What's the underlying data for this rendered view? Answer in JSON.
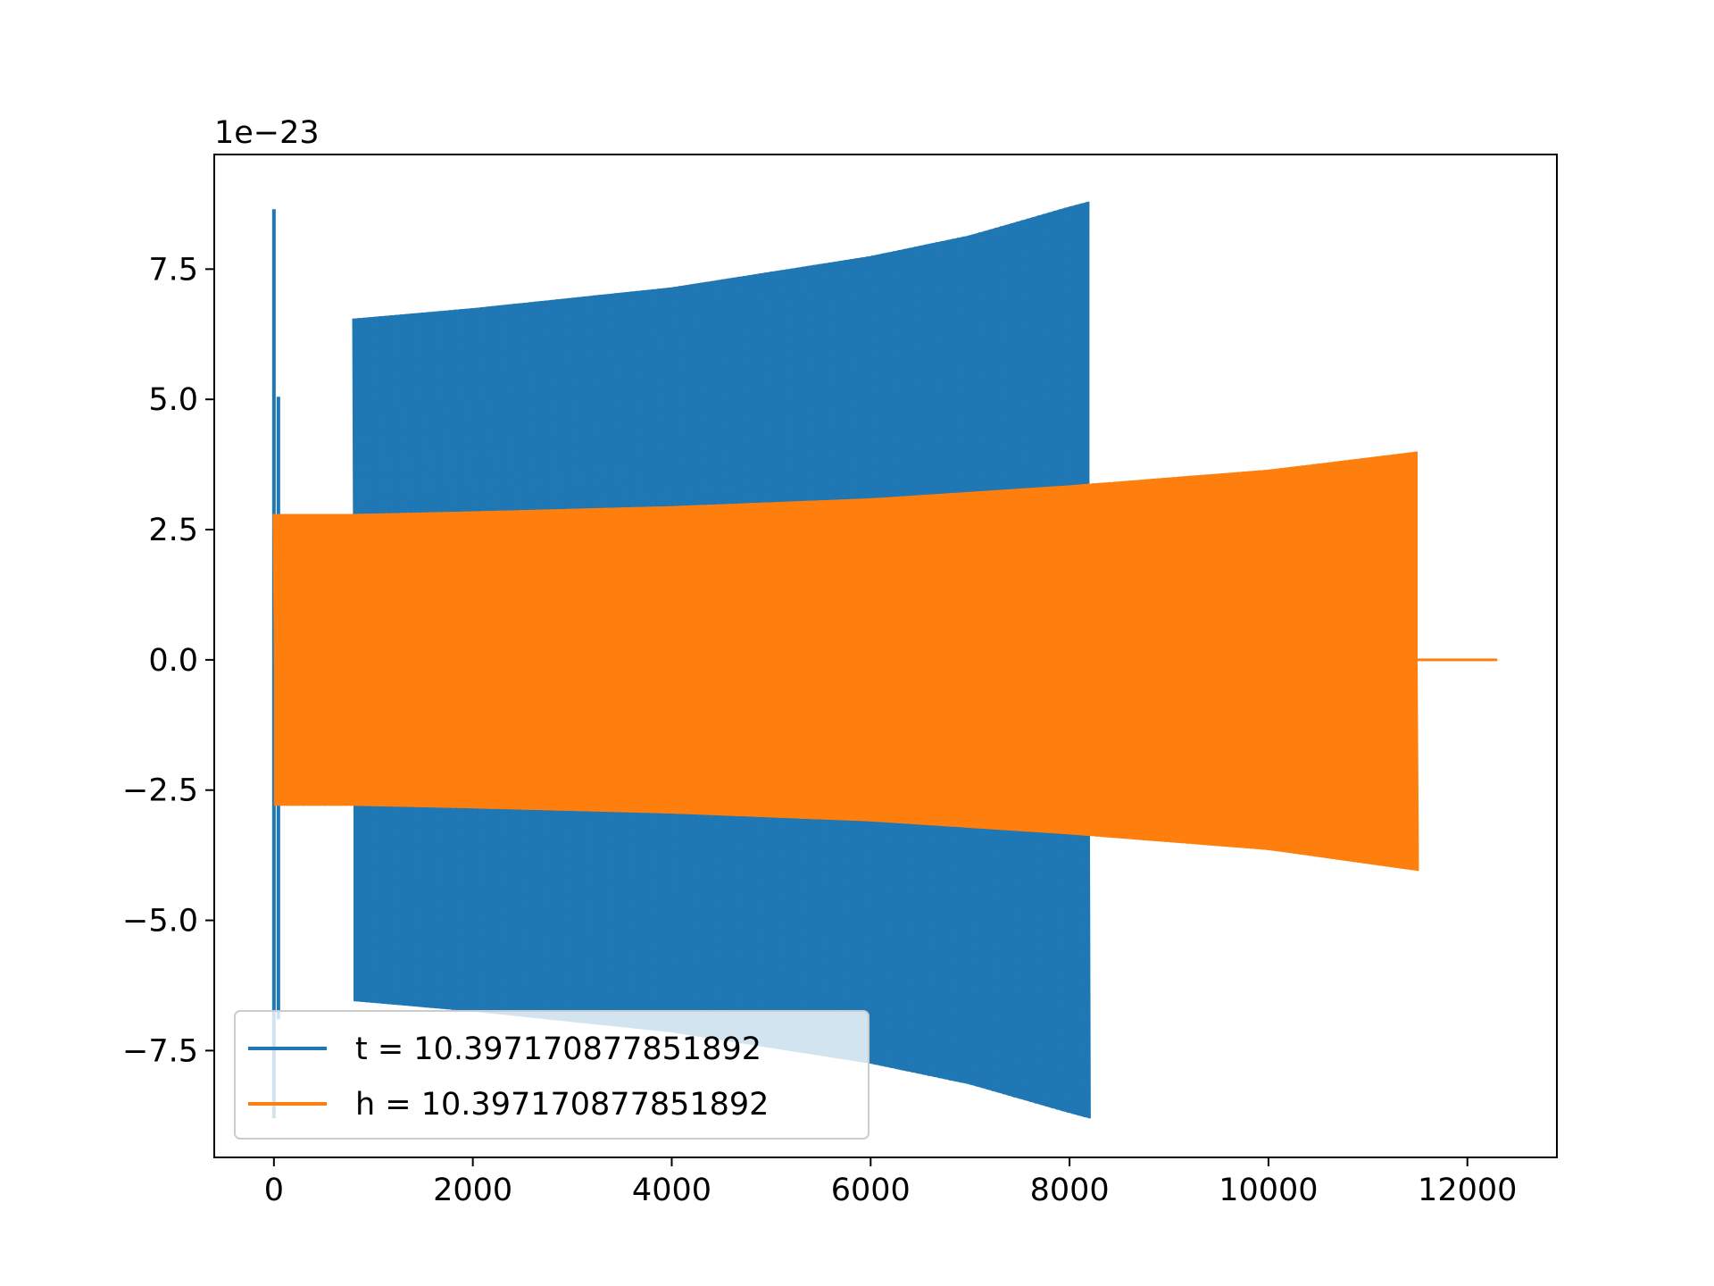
{
  "chart_data": {
    "type": "line",
    "title": "",
    "xlabel": "",
    "ylabel": "",
    "offset_label": "1e−23",
    "xlim": [
      -600,
      12900
    ],
    "ylim": [
      -9.55,
      9.7
    ],
    "x_ticks": [
      0,
      2000,
      4000,
      6000,
      8000,
      10000,
      12000
    ],
    "x_tick_labels": [
      "0",
      "2000",
      "4000",
      "6000",
      "8000",
      "10000",
      "12000"
    ],
    "y_ticks": [
      -7.5,
      -5.0,
      -2.5,
      0.0,
      2.5,
      5.0,
      7.5
    ],
    "y_tick_labels": [
      "−7.5",
      "−5.0",
      "−2.5",
      "0.0",
      "2.5",
      "5.0",
      "7.5"
    ],
    "grid": false,
    "legend_position": "lower-left",
    "series": [
      {
        "name": "t = 10.397170877851892",
        "color": "#1f77b4",
        "description": "oscillating waveform, envelope growing",
        "spikes": [
          {
            "x": 0,
            "y_max": 8.65,
            "y_min": -8.8
          },
          {
            "x": 45,
            "y_max": 5.05,
            "y_min": -6.9
          }
        ],
        "envelope": {
          "x": [
            800,
            2000,
            4000,
            6000,
            7000,
            8000,
            8200
          ],
          "upper": [
            6.55,
            6.75,
            7.15,
            7.75,
            8.15,
            8.7,
            8.8
          ],
          "lower": [
            -6.55,
            -6.75,
            -7.15,
            -7.75,
            -8.15,
            -8.7,
            -8.8
          ]
        }
      },
      {
        "name": "h = 10.397170877851892",
        "color": "#ff7f0e",
        "description": "oscillating waveform, envelope growing, then flat zero tail",
        "envelope": {
          "x": [
            0,
            800,
            2000,
            4000,
            6000,
            8000,
            10000,
            11500
          ],
          "upper": [
            2.8,
            2.8,
            2.85,
            2.95,
            3.1,
            3.35,
            3.65,
            4.0
          ],
          "lower": [
            -2.8,
            -2.8,
            -2.85,
            -2.95,
            -3.1,
            -3.35,
            -3.65,
            -4.05
          ]
        },
        "tail": {
          "x_start": 11500,
          "x_end": 12300,
          "y": 0.0
        }
      }
    ]
  }
}
